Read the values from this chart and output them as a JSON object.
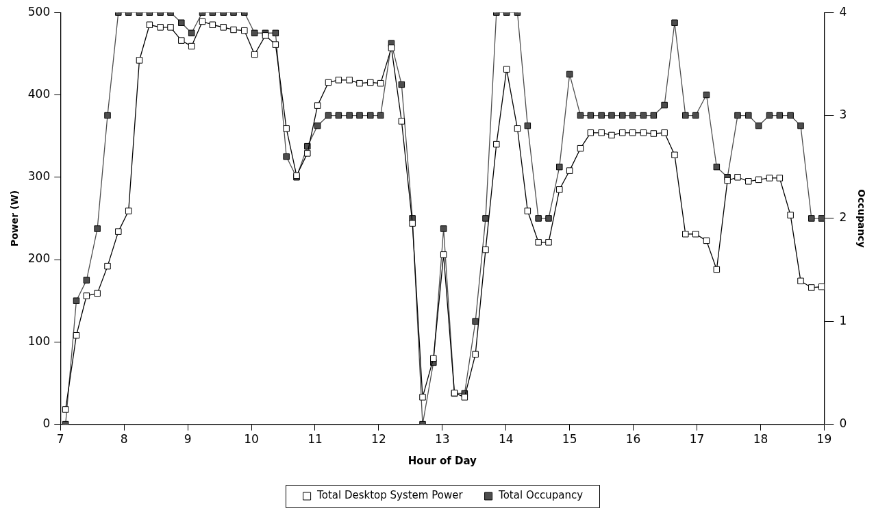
{
  "chart_data": {
    "type": "line",
    "xlabel": "Hour of Day",
    "ylabel": "Power (W)",
    "y2label": "Occupancy",
    "x": [
      7.08,
      7.25,
      7.41,
      7.58,
      7.74,
      7.91,
      8.07,
      8.24,
      8.4,
      8.57,
      8.73,
      8.9,
      9.06,
      9.23,
      9.39,
      9.56,
      9.72,
      9.89,
      10.05,
      10.22,
      10.38,
      10.55,
      10.71,
      10.88,
      11.04,
      11.21,
      11.37,
      11.54,
      11.7,
      11.87,
      12.03,
      12.2,
      12.36,
      12.53,
      12.69,
      12.86,
      13.02,
      13.19,
      13.35,
      13.52,
      13.68,
      13.85,
      14.01,
      14.18,
      14.34,
      14.51,
      14.67,
      14.84,
      15.0,
      15.17,
      15.33,
      15.5,
      15.66,
      15.83,
      15.99,
      16.16,
      16.32,
      16.49,
      16.65,
      16.82,
      16.98,
      17.15,
      17.31,
      17.48,
      17.64,
      17.81,
      17.97,
      18.14,
      18.3,
      18.47,
      18.63,
      18.8,
      18.96
    ],
    "series": [
      {
        "name": "Total Desktop System Power",
        "color": "#000000",
        "values": [
          18,
          108,
          156,
          159,
          192,
          234,
          259,
          442,
          485,
          482,
          482,
          466,
          459,
          489,
          485,
          482,
          479,
          478,
          449,
          472,
          461,
          359,
          302,
          329,
          387,
          415,
          418,
          418,
          414,
          415,
          414,
          457,
          368,
          244,
          33,
          80,
          206,
          38,
          33,
          85,
          212,
          340,
          431,
          359,
          259,
          221,
          221,
          285,
          308,
          335,
          354,
          354,
          351,
          354,
          354,
          354,
          353,
          354,
          327,
          231,
          231,
          223,
          188,
          296,
          300,
          295,
          297,
          299,
          299,
          254,
          174,
          166,
          167
        ]
      },
      {
        "name": "Total Occupancy",
        "color": "#4d4d4d",
        "axis": "y2",
        "values": [
          0,
          1.2,
          1.4,
          1.9,
          3.0,
          4,
          4,
          4,
          4,
          4,
          4,
          3.9,
          3.8,
          4,
          4,
          4,
          4,
          4,
          3.8,
          3.8,
          3.8,
          2.6,
          2.4,
          2.7,
          2.9,
          3,
          3,
          3,
          3,
          3,
          3,
          3.7,
          3.3,
          2.0,
          0,
          0.6,
          1.9,
          0.3,
          0.3,
          1.0,
          2.0,
          4,
          4,
          4,
          2.9,
          2.0,
          2.0,
          2.5,
          3.4,
          3,
          3,
          3,
          3,
          3,
          3,
          3,
          3,
          3.1,
          3.9,
          3,
          3,
          3.2,
          2.5,
          2.4,
          3,
          3,
          2.9,
          3,
          3,
          3,
          2.9,
          2,
          2
        ]
      }
    ],
    "xlim": [
      7,
      19
    ],
    "xticks": [
      7,
      8,
      9,
      10,
      11,
      12,
      13,
      14,
      15,
      16,
      17,
      18,
      19
    ],
    "ylim": [
      0,
      500
    ],
    "yticks": [
      0,
      100,
      200,
      300,
      400,
      500
    ],
    "y2lim": [
      0,
      4
    ],
    "y2ticks": [
      0,
      1,
      2,
      3,
      4
    ],
    "grid": false,
    "legend": "bottom",
    "marker": "square",
    "line_style": "solid"
  }
}
